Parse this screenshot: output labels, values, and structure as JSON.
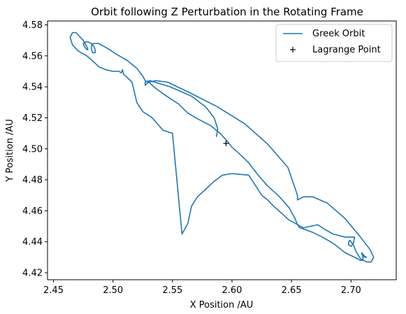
{
  "chart_data": {
    "type": "line",
    "title": "Orbit following Z Perturbation in the Rotating Frame",
    "xlabel": "X Position /AU",
    "ylabel": "Y Position /AU",
    "xlim": [
      2.445,
      2.738
    ],
    "ylim": [
      4.4155,
      4.5825
    ],
    "xticks": [
      2.45,
      2.5,
      2.55,
      2.6,
      2.65,
      2.7
    ],
    "xtick_labels": [
      "2.45",
      "2.50",
      "2.55",
      "2.60",
      "2.65",
      "2.70"
    ],
    "yticks": [
      4.42,
      4.44,
      4.46,
      4.48,
      4.5,
      4.52,
      4.54,
      4.56,
      4.58
    ],
    "ytick_labels": [
      "4.42",
      "4.44",
      "4.46",
      "4.48",
      "4.50",
      "4.52",
      "4.54",
      "4.56",
      "4.58"
    ],
    "grid": false,
    "legend_position": "upper right",
    "series": [
      {
        "name": "Greek Orbit",
        "kind": "line",
        "color": "#1f77b4",
        "x": [
          2.587,
          2.588,
          2.585,
          2.578,
          2.566,
          2.548,
          2.531,
          2.527,
          2.527,
          2.53,
          2.536,
          2.546,
          2.565,
          2.588,
          2.611,
          2.63,
          2.647,
          2.655,
          2.655,
          2.66,
          2.668,
          2.68,
          2.695,
          2.708,
          2.716,
          2.719,
          2.717,
          2.713,
          2.708,
          2.704,
          2.702,
          2.7,
          2.699,
          2.698,
          2.698,
          2.7,
          2.702,
          2.703,
          2.699,
          2.695,
          2.685,
          2.678,
          2.672,
          2.66,
          2.648,
          2.635,
          2.63,
          2.625,
          2.62,
          2.614,
          2.6,
          2.592,
          2.585,
          2.578,
          2.571,
          2.566,
          2.563,
          2.558,
          2.55,
          2.542,
          2.533,
          2.525,
          2.52,
          2.516,
          2.512,
          2.509,
          2.508,
          2.507,
          2.505,
          2.5,
          2.494,
          2.488,
          2.484,
          2.481,
          2.478,
          2.471,
          2.466,
          2.464,
          2.466,
          2.469,
          2.475,
          2.478,
          2.479,
          2.478,
          2.476,
          2.475,
          2.477,
          2.479,
          2.482,
          2.484,
          2.485,
          2.485,
          2.483,
          2.482,
          2.482,
          2.484,
          2.488,
          2.495,
          2.503,
          2.512,
          2.52,
          2.525,
          2.527,
          2.53,
          2.536,
          2.545,
          2.555,
          2.563,
          2.572,
          2.582,
          2.59,
          2.596,
          2.6,
          2.606,
          2.614,
          2.622,
          2.63,
          2.64,
          2.648,
          2.653,
          2.655,
          2.657,
          2.661,
          2.668,
          2.676,
          2.685,
          2.695,
          2.703,
          2.708,
          2.71,
          2.71,
          2.709,
          2.709,
          2.711,
          2.713,
          2.712,
          2.71
        ],
        "y": [
          4.508,
          4.513,
          4.52,
          4.527,
          4.534,
          4.54,
          4.544,
          4.543,
          4.541,
          4.543,
          4.544,
          4.543,
          4.536,
          4.527,
          4.516,
          4.503,
          4.488,
          4.47,
          4.467,
          4.469,
          4.469,
          4.465,
          4.455,
          4.443,
          4.435,
          4.43,
          4.427,
          4.427,
          4.429,
          4.434,
          4.438,
          4.44,
          4.441,
          4.44,
          4.438,
          4.437,
          4.439,
          4.443,
          4.443,
          4.443,
          4.445,
          4.448,
          4.451,
          4.449,
          4.454,
          4.463,
          4.467,
          4.47,
          4.476,
          4.483,
          4.484,
          4.483,
          4.479,
          4.474,
          4.469,
          4.463,
          4.452,
          4.445,
          4.51,
          4.512,
          4.52,
          4.524,
          4.53,
          4.543,
          4.546,
          4.548,
          4.551,
          4.549,
          4.55,
          4.55,
          4.551,
          4.553,
          4.556,
          4.558,
          4.56,
          4.563,
          4.567,
          4.572,
          4.575,
          4.575,
          4.57,
          4.566,
          4.564,
          4.564,
          4.566,
          4.568,
          4.569,
          4.569,
          4.568,
          4.566,
          4.564,
          4.562,
          4.562,
          4.564,
          4.567,
          4.568,
          4.568,
          4.565,
          4.561,
          4.557,
          4.552,
          4.547,
          4.544,
          4.543,
          4.539,
          4.534,
          4.529,
          4.523,
          4.519,
          4.515,
          4.51,
          4.505,
          4.501,
          4.497,
          4.491,
          4.483,
          4.476,
          4.469,
          4.462,
          4.455,
          4.451,
          4.449,
          4.448,
          4.446,
          4.443,
          4.439,
          4.433,
          4.43,
          4.428,
          4.428,
          4.43,
          4.433,
          4.433,
          4.431,
          4.43,
          4.43,
          4.431
        ]
      },
      {
        "name": "Lagrange Point",
        "kind": "marker",
        "marker": "+",
        "color": "#000000",
        "x": [
          2.595
        ],
        "y": [
          4.5035
        ]
      }
    ]
  }
}
